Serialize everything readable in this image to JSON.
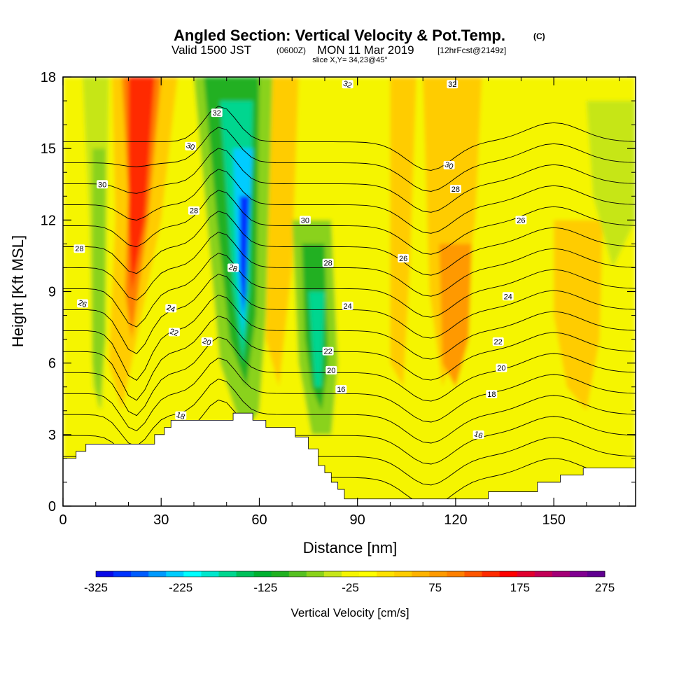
{
  "header": {
    "title": "Angled Section: Vertical Velocity & Pot.Temp.",
    "copyright": "(C)",
    "valid_prefix": "Valid 1500 JST",
    "valid_z": "(0600Z)",
    "valid_date": "MON 11 Mar 2019",
    "forecast": "[12hrFcst@2149z]",
    "slice": "slice X,Y= 34,23@45°"
  },
  "chart_data": {
    "type": "heatmap",
    "title": "Angled Section: Vertical Velocity & Pot.Temp.",
    "xlabel": "Distance [nm]",
    "ylabel": "Height [Kft MSL]",
    "xlim": [
      0,
      175
    ],
    "ylim": [
      0,
      18
    ],
    "x_ticks": [
      "0",
      "30",
      "60",
      "90",
      "120",
      "150"
    ],
    "y_ticks": [
      "0",
      "3",
      "6",
      "9",
      "12",
      "15",
      "18"
    ],
    "x_tick_values": [
      0,
      30,
      60,
      90,
      120,
      150
    ],
    "y_tick_values": [
      0,
      3,
      6,
      9,
      12,
      15,
      18
    ],
    "grid": false,
    "fill_field": "Vertical Velocity [cm/s]",
    "colorbar": {
      "label": "Vertical Velocity [cm/s]",
      "tick_labels": [
        "-325",
        "-225",
        "-125",
        "-25",
        "75",
        "175",
        "275"
      ],
      "tick_values": [
        -325,
        -225,
        -125,
        -25,
        75,
        175,
        275
      ],
      "colors": [
        "#0a0ae6",
        "#0033ff",
        "#005cff",
        "#0099ff",
        "#00ccff",
        "#00ffff",
        "#00e6cc",
        "#00d68f",
        "#00c05a",
        "#00b030",
        "#20b020",
        "#55c021",
        "#8ad21a",
        "#c6e619",
        "#f5f500",
        "#ffff00",
        "#ffe100",
        "#ffcc00",
        "#ffb200",
        "#ff9900",
        "#ff7f00",
        "#ff5500",
        "#ff2a00",
        "#ff0000",
        "#e0002e",
        "#c20056",
        "#a30076",
        "#800090",
        "#600090"
      ]
    },
    "contour_field": "Potential Temperature",
    "contour_labels": [
      "32",
      "32",
      "32",
      "30",
      "30",
      "30",
      "30",
      "28",
      "28",
      "28",
      "28",
      "28",
      "26",
      "26",
      "26",
      "24",
      "24",
      "24",
      "22",
      "22",
      "22",
      "20",
      "20",
      "20",
      "18",
      "18",
      "16",
      "16"
    ]
  }
}
